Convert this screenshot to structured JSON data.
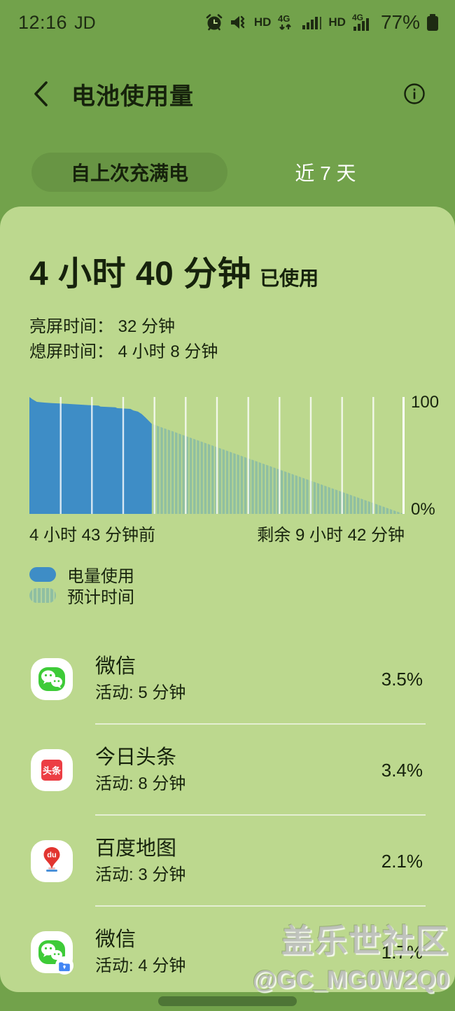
{
  "status_bar": {
    "time": "12:16",
    "carrier": "JD",
    "hd": "HD",
    "network": "4G",
    "battery_pct": "77%",
    "icons": [
      "alarm-icon",
      "mute-vibrate-icon",
      "hd-badge",
      "mobile-data-4g-icon",
      "signal-strength-icon",
      "hd-badge",
      "signal-strength-4g-icon",
      "battery-icon"
    ]
  },
  "header": {
    "title": "电池使用量"
  },
  "tabs": [
    {
      "label": "自上次充满电",
      "selected": true
    },
    {
      "label": "近 7 天",
      "selected": false
    }
  ],
  "summary": {
    "duration": "4 小时 40 分钟",
    "suffix": "已使用",
    "screen_on": "亮屏时间： 32 分钟",
    "screen_off": "熄屏时间： 4 小时 8 分钟"
  },
  "chart_data": {
    "type": "area",
    "title": "电池电量历史与预计剩余时间",
    "y_axis": {
      "max_label": "100",
      "min_label": "0%",
      "range": [
        0,
        100
      ],
      "position": "right"
    },
    "x_axis": {
      "left_label": "4 小时 43 分钟前",
      "right_label": "剩余 9 小时 42 分钟",
      "used_fraction": 0.327,
      "gridline_count": 11,
      "grid": true
    },
    "current_battery_pct": 77,
    "series": [
      {
        "name": "电量使用",
        "style": "solid",
        "color": "#3e8dc6",
        "points": [
          [
            0,
            100
          ],
          [
            0.008,
            98
          ],
          [
            0.02,
            95.8
          ],
          [
            0.04,
            95.2
          ],
          [
            0.06,
            94.8
          ],
          [
            0.1,
            94.2
          ],
          [
            0.15,
            93.2
          ],
          [
            0.185,
            92.6
          ],
          [
            0.19,
            91.8
          ],
          [
            0.23,
            91.2
          ],
          [
            0.235,
            90.4
          ],
          [
            0.27,
            89.8
          ],
          [
            0.278,
            88.5
          ],
          [
            0.29,
            87.5
          ],
          [
            0.3,
            85.5
          ],
          [
            0.31,
            82.5
          ],
          [
            0.327,
            77
          ]
        ]
      },
      {
        "name": "预计时间",
        "style": "striped",
        "color": "#8fbfa2",
        "points": [
          [
            0.327,
            77
          ],
          [
            1,
            0
          ]
        ]
      }
    ],
    "legend_position": "below-left"
  },
  "legend": [
    {
      "label": "电量使用",
      "swatch": "solid-blue"
    },
    {
      "label": "预计时间",
      "swatch": "striped-teal"
    }
  ],
  "apps": [
    {
      "name": "微信",
      "activity": "活动: 5 分钟",
      "pct": "3.5%",
      "icon": "wechat-icon"
    },
    {
      "name": "今日头条",
      "activity": "活动: 8 分钟",
      "pct": "3.4%",
      "icon": "toutiao-icon"
    },
    {
      "name": "百度地图",
      "activity": "活动: 3 分钟",
      "pct": "2.1%",
      "icon": "baidu-maps-icon"
    },
    {
      "name": "微信",
      "activity": "活动: 4 分钟",
      "pct": "1.7%",
      "icon": "wechat-dual-icon"
    }
  ],
  "toutiao_icon_text": "头条",
  "baidu_icon_text": "du",
  "watermark": {
    "line1": "盖乐世社区",
    "line2": "@GC_MG0W2Q0"
  },
  "colors": {
    "background": "#72a24b",
    "card": "#bcd88e",
    "usage_blue": "#3e8dc6",
    "forecast_stripe": "#8fbfa2",
    "text_dark": "#16220c",
    "gridline": "#ffffff"
  }
}
